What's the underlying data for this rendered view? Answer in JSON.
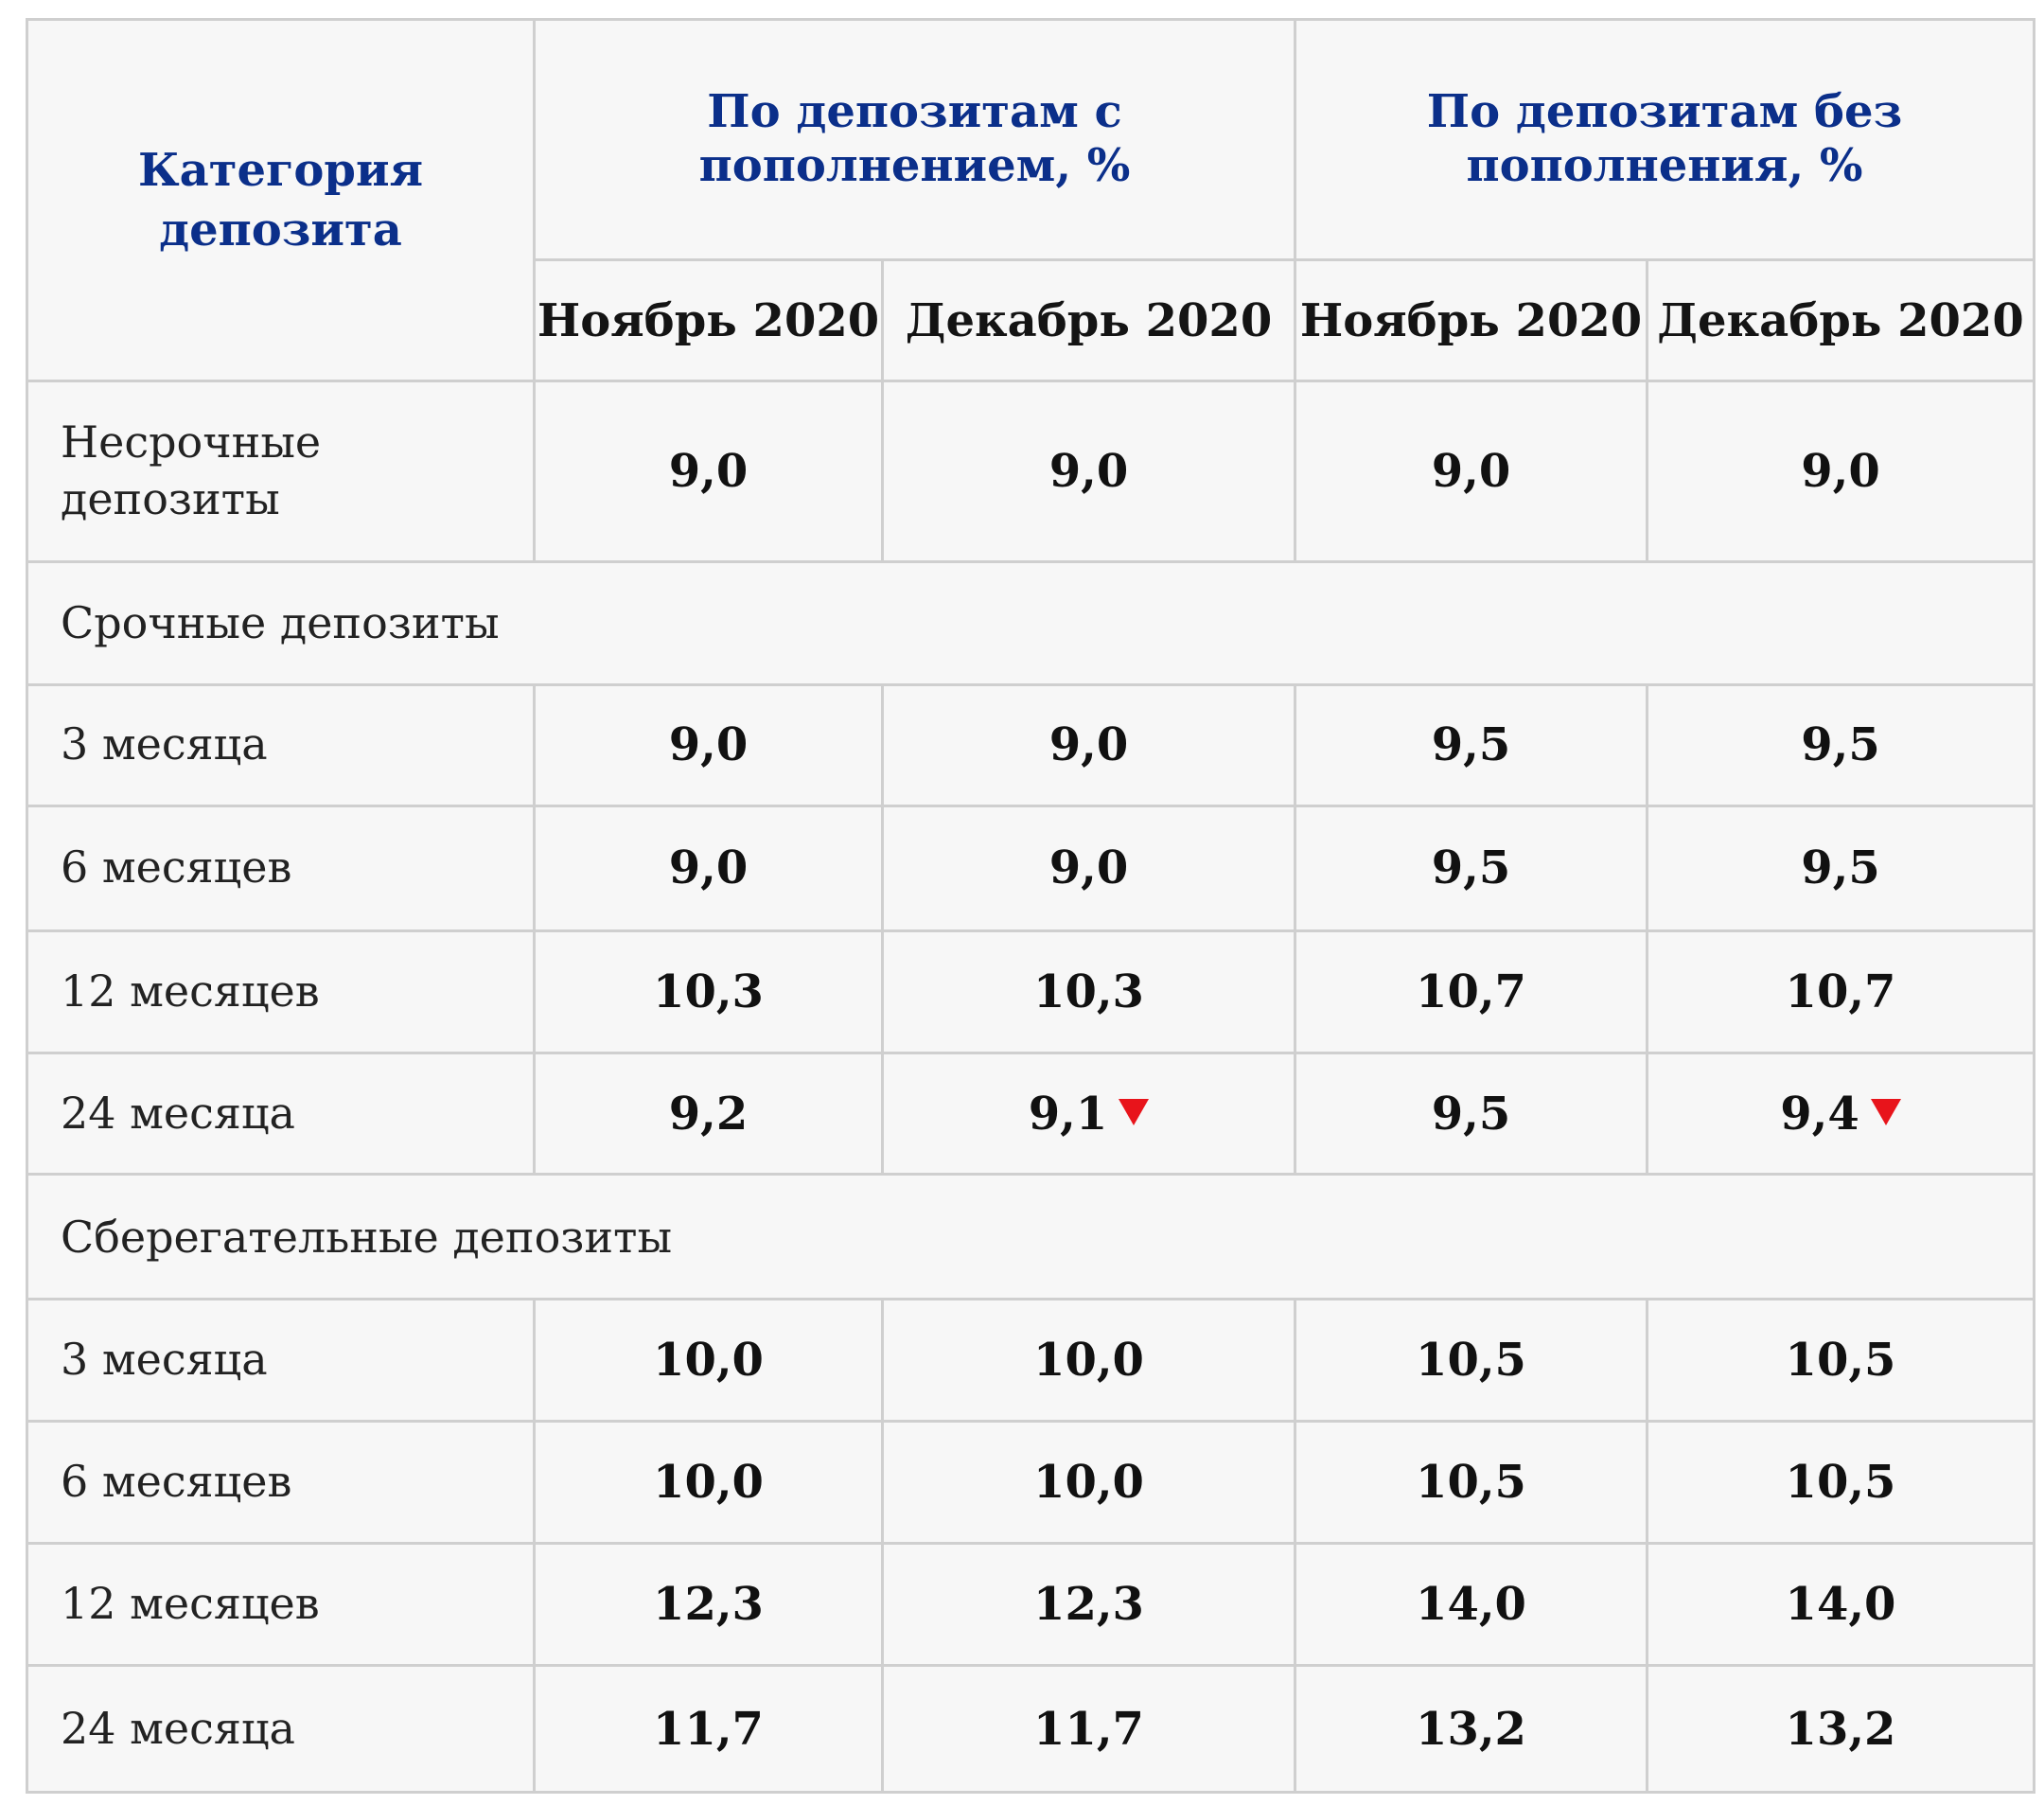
{
  "header": {
    "category": "Категория депозита",
    "group_with_topup": "По депозитам с пополнением, %",
    "group_without_topup": "По депозитам без пополнения, %",
    "months": [
      "Ноябрь 2020",
      "Декабрь 2020",
      "Ноябрь 2020",
      "Декабрь 2020"
    ]
  },
  "rows": {
    "demand": {
      "label": "Несрочные депозиты",
      "values": [
        "9,0",
        "9,0",
        "9,0",
        "9,0"
      ]
    },
    "term_section": "Срочные депозиты",
    "term": [
      {
        "label": "3 месяца",
        "values": [
          "9,0",
          "9,0",
          "9,5",
          "9,5"
        ]
      },
      {
        "label": "6 месяцев",
        "values": [
          "9,0",
          "9,0",
          "9,5",
          "9,5"
        ]
      },
      {
        "label": "12 месяцев",
        "values": [
          "10,3",
          "10,3",
          "10,7",
          "10,7"
        ]
      },
      {
        "label": "24 месяца",
        "values": [
          "9,2",
          "9,1",
          "9,5",
          "9,4"
        ],
        "decrease": [
          false,
          true,
          false,
          true
        ]
      }
    ],
    "savings_section": "Сберегательные депозиты",
    "savings": [
      {
        "label": "3 месяца",
        "values": [
          "10,0",
          "10,0",
          "10,5",
          "10,5"
        ]
      },
      {
        "label": "6 месяцев",
        "values": [
          "10,0",
          "10,0",
          "10,5",
          "10,5"
        ]
      },
      {
        "label": "12 месяцев",
        "values": [
          "12,3",
          "12,3",
          "14,0",
          "14,0"
        ]
      },
      {
        "label": "24 месяца",
        "values": [
          "11,7",
          "11,7",
          "13,2",
          "13,2"
        ]
      }
    ]
  },
  "colors": {
    "header_text": "#0b2f8a",
    "decrease_marker": "#e8141b",
    "grid": "#cfcfcf",
    "cell_background": "#f7f7f7"
  }
}
